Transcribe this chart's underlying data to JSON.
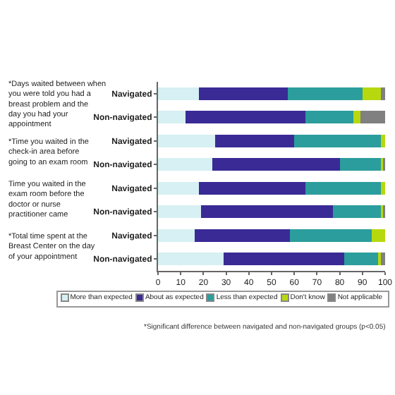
{
  "chart_data": {
    "type": "bar",
    "orientation": "horizontal",
    "stacked": true,
    "categories": [
      "Navigated",
      "Non-navigated",
      "Navigated",
      "Non-navigated",
      "Navigated",
      "Non-navigated",
      "Navigated",
      "Non-navigated"
    ],
    "series": [
      {
        "name": "More than expected",
        "color": "#d6f0f3",
        "values": [
          18,
          12,
          25,
          24,
          18,
          19,
          16,
          29
        ]
      },
      {
        "name": "About as expected",
        "color": "#3a2a96",
        "values": [
          39,
          53,
          35,
          56,
          47,
          58,
          42,
          53
        ]
      },
      {
        "name": "Less than expected",
        "color": "#2a9d9c",
        "values": [
          33,
          21,
          38,
          18,
          33,
          21,
          36,
          15
        ]
      },
      {
        "name": "Don't know",
        "color": "#b7d80f",
        "values": [
          8,
          3,
          2,
          1,
          2,
          1,
          6,
          1
        ]
      },
      {
        "name": "Not applicable",
        "color": "#808080",
        "values": [
          2,
          11,
          0,
          1,
          0,
          1,
          0,
          2
        ]
      }
    ],
    "xlim": [
      0,
      100
    ],
    "xticks": [
      0,
      10,
      20,
      30,
      40,
      50,
      60,
      70,
      80,
      90,
      100
    ],
    "grid": false,
    "legend": "bottom",
    "annotations": [
      "*Days waited between when you were told you had a breast problem and the day you had your appointment",
      "*Time you waited in the check-in area before going to an exam room",
      "Time you waited in the exam room before the doctor or nurse practitioner came",
      "*Total time spent at the Breast Center on the day of your appointment",
      "*Significant difference between navigated and non-navigated groups (p<0.05)"
    ]
  }
}
